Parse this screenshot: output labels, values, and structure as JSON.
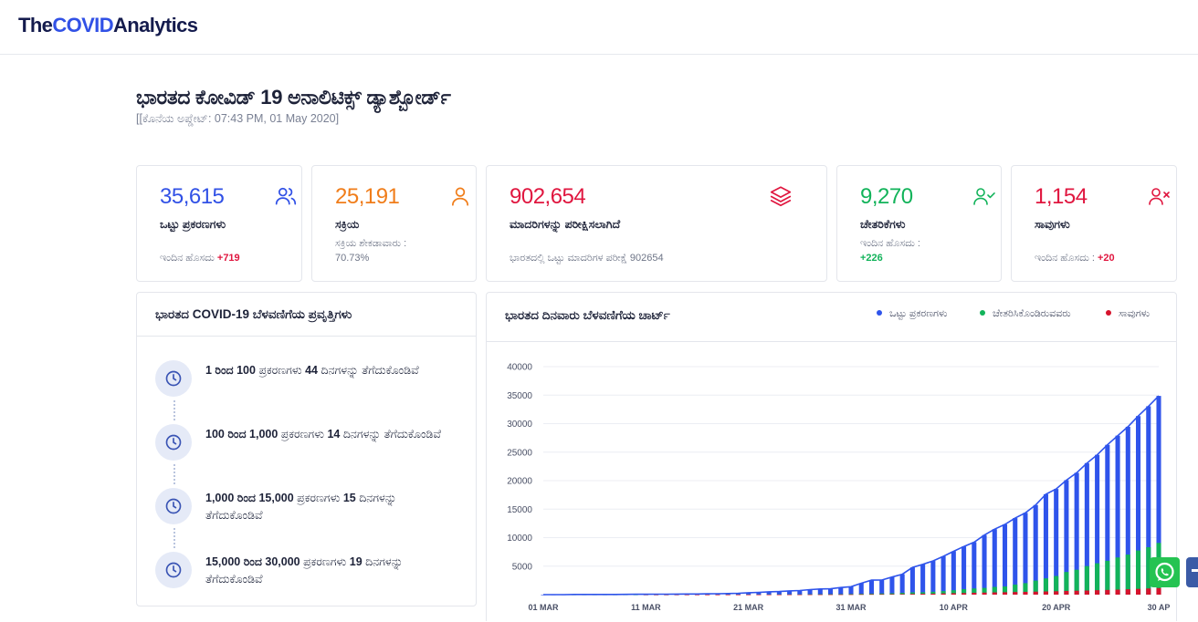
{
  "header": {
    "logo_the": "The",
    "logo_covid": "COVID",
    "logo_analytics": "Analytics"
  },
  "page": {
    "title": "ಭಾರತದ ಕೋವಿಡ್ 19 ಅನಾಲಿಟಿಕ್ಸ್ ಡ್ಯಾಶ್ಬೋರ್ಡ್",
    "updated": "[[ಕೊನೆಯ ಅಪ್ಡೇಟ್: 07:43 PM, 01 May 2020]"
  },
  "cards": {
    "total": {
      "value": "35,615",
      "label": "ಒಟ್ಟು ಪ್ರಕರಣಗಳು",
      "sub_text": "ಇಂದಿನ ಹೊಸದು ",
      "delta": "+719",
      "color": "#3151e6",
      "icon": "users-icon"
    },
    "active": {
      "value": "25,191",
      "label": "ಸಕ್ರಿಯ",
      "sub_text": "ಸಕ್ರಿಯ ಶೇಕಡಾವಾರು :",
      "sub_value": "70.73%",
      "color": "#f07d1a",
      "icon": "user-icon"
    },
    "tested": {
      "value": "902,654",
      "label": "ಮಾದರಿಗಳನ್ನು ಪರೀಕ್ಷಿಸಲಾಗಿದೆ",
      "sub_text": "ಭಾರತದಲ್ಲಿ ಒಟ್ಟು ಮಾದರಿಗಳ ಪರೀಕ್ಷೆ 902654",
      "color": "#e0163f",
      "icon": "layers-icon"
    },
    "recovered": {
      "value": "9,270",
      "label": "ಚೇತರಿಕೆಗಳು",
      "sub_text": "ಇಂದಿನ ಹೊಸದು :",
      "delta": "+226",
      "color": "#12b35a",
      "icon": "user-check-icon"
    },
    "deaths": {
      "value": "1,154",
      "label": "ಸಾವುಗಳು",
      "sub_text": "ಇಂದಿನ ಹೊಸದು : ",
      "delta": "+20",
      "color": "#e0163f",
      "icon": "user-x-icon"
    }
  },
  "trends": {
    "title": "ಭಾರತದ COVID-19 ಬೆಳವಣಿಗೆಯ ಪ್ರವೃತ್ತಿಗಳು",
    "items": [
      {
        "range": "1 ರಿಂದ 100",
        "mid": " ಪ್ರಕರಣಗಳು ",
        "days": "44",
        "tail": " ದಿನಗಳನ್ನು ತೆಗೆದುಕೊಂಡಿವೆ"
      },
      {
        "range": "100 ರಿಂದ 1,000",
        "mid": " ಪ್ರಕರಣಗಳು ",
        "days": "14",
        "tail": " ದಿನಗಳನ್ನು ತೆಗೆದುಕೊಂಡಿವೆ"
      },
      {
        "range": "1,000 ರಿಂದ 15,000",
        "mid": " ಪ್ರಕರಣಗಳು ",
        "days": "15",
        "tail": " ದಿನಗಳನ್ನು ತೆಗೆದುಕೊಂಡಿವೆ"
      },
      {
        "range": "15,000 ರಿಂದ 30,000",
        "mid": " ಪ್ರಕರಣಗಳು ",
        "days": "19",
        "tail": " ದಿನಗಳನ್ನು ತೆಗೆದುಕೊಂಡಿವೆ"
      }
    ]
  },
  "chart_panel": {
    "title": "ಭಾರತದ ದಿನವಾರು ಬೆಳವಣಿಗೆಯ ಚಾರ್ಟ್",
    "legend": [
      {
        "label": "ಒಟ್ಟು ಪ್ರಕರಣಗಳು",
        "color": "#2f54eb"
      },
      {
        "label": "ಚೇತರಿಸಿಕೊಂಡಿರುವವರು",
        "color": "#12b35a"
      },
      {
        "label": "ಸಾವುಗಳು",
        "color": "#d6132c"
      }
    ]
  },
  "chart_data": {
    "type": "bar",
    "title": "ಭಾರತದ ದಿನವಾರು ಬೆಳವಣಿಗೆಯ ಚಾರ್ಟ್",
    "xlabel": "",
    "ylabel": "",
    "ylim": [
      0,
      40000
    ],
    "yticks": [
      5000,
      10000,
      15000,
      20000,
      25000,
      30000,
      35000,
      40000
    ],
    "xtick_labels": [
      "01 MAR",
      "11 MAR",
      "21 MAR",
      "31 MAR",
      "10 APR",
      "20 APR",
      "30 AP"
    ],
    "xtick_indices": [
      0,
      10,
      20,
      30,
      40,
      50,
      60
    ],
    "categories_count": 61,
    "series": [
      {
        "name": "ಒಟ್ಟು ಪ್ರಕರಣಗಳು",
        "color": "#2f54eb",
        "values": [
          3,
          5,
          6,
          28,
          30,
          31,
          34,
          39,
          43,
          56,
          62,
          73,
          82,
          102,
          113,
          119,
          142,
          156,
          194,
          244,
          330,
          396,
          499,
          536,
          657,
          727,
          887,
          987,
          1024,
          1251,
          1397,
          1998,
          2543,
          2567,
          3082,
          3588,
          4778,
          5311,
          5916,
          6725,
          7598,
          8446,
          9205,
          10453,
          11487,
          12322,
          13430,
          14352,
          15722,
          17615,
          18539,
          20080,
          21370,
          23077,
          24530,
          26283,
          27890,
          29451,
          31324,
          33050,
          34863
        ]
      },
      {
        "name": "ಚೇತರಿಸಿಕೊಂಡಿರುವವರು",
        "color": "#12b35a",
        "values": [
          0,
          0,
          0,
          3,
          3,
          3,
          3,
          3,
          3,
          4,
          4,
          4,
          4,
          10,
          13,
          13,
          14,
          14,
          20,
          20,
          24,
          27,
          36,
          40,
          43,
          45,
          73,
          84,
          95,
          102,
          124,
          156,
          183,
          212,
          247,
          325,
          402,
          421,
          506,
          620,
          774,
          969,
          1080,
          1181,
          1359,
          1432,
          1768,
          2015,
          2465,
          2854,
          3273,
          3975,
          4370,
          5012,
          5498,
          5939,
          6523,
          7027,
          7747,
          8325,
          9068
        ]
      },
      {
        "name": "ಸಾವುಗಳು",
        "color": "#d6132c",
        "values": [
          0,
          0,
          0,
          0,
          0,
          0,
          0,
          0,
          0,
          0,
          1,
          1,
          2,
          2,
          2,
          2,
          3,
          3,
          4,
          5,
          7,
          10,
          10,
          12,
          20,
          20,
          24,
          27,
          32,
          35,
          41,
          58,
          72,
          75,
          86,
          99,
          124,
          149,
          169,
          206,
          242,
          273,
          324,
          353,
          392,
          420,
          457,
          486,
          521,
          559,
          592,
          652,
          686,
          723,
          779,
          825,
          881,
          939,
          1008,
          1079,
          1154
        ]
      }
    ]
  },
  "share": {
    "whatsapp": "whatsapp-icon",
    "facebook": "facebook-icon"
  }
}
